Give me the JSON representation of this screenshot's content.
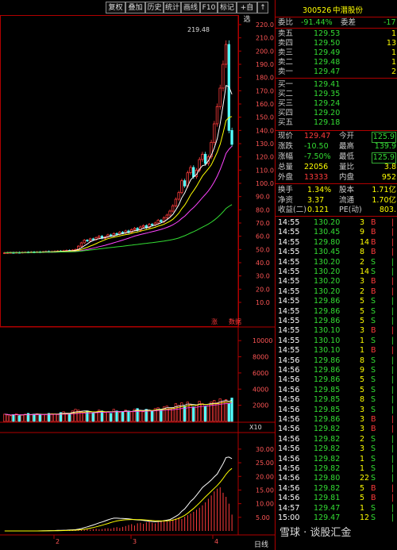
{
  "toolbar": {
    "items": [
      "复权",
      "叠加",
      "历史",
      "统计",
      "画线",
      "F10",
      "标记",
      "+自选",
      "↑"
    ]
  },
  "price_chart": {
    "y_ticks": [
      "220.0",
      "210.0",
      "200.0",
      "190.0",
      "180.0",
      "170.0",
      "160.0",
      "150.0",
      "140.0",
      "130.0",
      "120.0",
      "110.0",
      "100.0",
      "90.0",
      "80.0",
      "70.0",
      "60.0",
      "50.0",
      "40.0",
      "30.0",
      "20.0",
      "10.0"
    ],
    "peak_label": "219.48",
    "markers": [
      "涨",
      "数据"
    ],
    "closes": [
      47.5,
      47.6,
      47.7,
      47.6,
      47.8,
      47.7,
      47.9,
      48.0,
      47.9,
      48.1,
      48.0,
      48.2,
      48.1,
      48.3,
      48.5,
      48.2,
      48.4,
      48.6,
      48.8,
      48.7,
      49.0,
      49.3,
      49.1,
      49.5,
      50.0,
      52.5,
      55.0,
      57.0,
      56.5,
      58.0,
      57.5,
      59.0,
      60.0,
      58.5,
      59.5,
      61.0,
      60.5,
      62.0,
      61.5,
      63.0,
      62.5,
      64.0,
      63.0,
      65.0,
      66.0,
      64.5,
      67.0,
      68.0,
      66.5,
      69.0,
      68.5,
      70.0,
      72.0,
      71.0,
      74.0,
      76.0,
      79.0,
      83.0,
      88.0,
      93.0,
      102.0,
      98.0,
      108.0,
      112.0,
      105.0,
      110.0,
      118.0,
      122.0,
      115.0,
      120.0,
      131.0,
      145.0,
      158.0,
      172.0,
      190.0,
      205.0,
      140.0,
      129.47
    ],
    "ma5_label": "",
    "last_price": 129.47
  },
  "volume_chart": {
    "y_ticks": [
      "10000",
      "8000",
      "6000",
      "4000",
      "2000"
    ],
    "unit_label": "X10",
    "volumes": [
      900,
      800,
      700,
      850,
      950,
      700,
      800,
      900,
      1000,
      850,
      900,
      950,
      800,
      850,
      900,
      1000,
      950,
      900,
      850,
      1100,
      1200,
      1000,
      900,
      1300,
      1500,
      1400,
      1200,
      1100,
      1300,
      1200,
      1000,
      1100,
      1400,
      1300,
      1100,
      1200,
      1000,
      1500,
      1300,
      1100,
      1200,
      1400,
      1300,
      1200,
      1500,
      1600,
      1300,
      1200,
      1500,
      1400,
      1300,
      1600,
      1700,
      1500,
      1800,
      1900,
      1600,
      1700,
      2200,
      2000,
      2300,
      1900,
      2400,
      2100,
      1800,
      2000,
      2500,
      2200,
      1900,
      2100,
      2400,
      2600,
      2300,
      2800,
      2500,
      2700,
      2200,
      2900
    ]
  },
  "indicator_chart": {
    "y_ticks": [
      "30.00",
      "25.00",
      "20.00",
      "15.00",
      "10.00",
      "5.00"
    ],
    "macd_bars": [
      0.2,
      0.3,
      0.2,
      0.3,
      0.4,
      0.3,
      0.5,
      0.4,
      0.6,
      0.5,
      0.4,
      0.6,
      0.5,
      0.7,
      0.8,
      0.6,
      0.7,
      0.9,
      1.0,
      0.8,
      1.2,
      1.4,
      1.1,
      1.5,
      1.8,
      2.2,
      2.5,
      2.0,
      2.8,
      3.0,
      2.6,
      3.2,
      3.5,
      3.0,
      2.8,
      3.3,
      3.6,
      4.0,
      3.5,
      3.8,
      4.2,
      4.6,
      5.0,
      4.4,
      5.2,
      5.8,
      6.4,
      7.0,
      7.8,
      8.5,
      9.4,
      10.5,
      11.8,
      13.0,
      14.5,
      15.5,
      16.0,
      14.0,
      12.5,
      10.0,
      6.0
    ]
  },
  "bottom_axis": {
    "labels": [
      "2",
      "3",
      "4"
    ],
    "tab": "日线"
  },
  "quote": {
    "code": "300526",
    "name": "中潜股份",
    "weibi_label": "委比",
    "weibi_value": "-91.44%",
    "weicha_label": "委差",
    "weicha_value": "-17",
    "asks": [
      {
        "label": "卖五",
        "price": "129.53",
        "vol": "1"
      },
      {
        "label": "卖四",
        "price": "129.50",
        "vol": "13"
      },
      {
        "label": "卖三",
        "price": "129.49",
        "vol": "1"
      },
      {
        "label": "卖二",
        "price": "129.48",
        "vol": "1"
      },
      {
        "label": "卖一",
        "price": "129.47",
        "vol": "2"
      }
    ],
    "bids": [
      {
        "label": "买一",
        "price": "129.41",
        "vol": ""
      },
      {
        "label": "买二",
        "price": "129.35",
        "vol": ""
      },
      {
        "label": "买三",
        "price": "129.24",
        "vol": ""
      },
      {
        "label": "买四",
        "price": "129.20",
        "vol": ""
      },
      {
        "label": "买五",
        "price": "129.18",
        "vol": ""
      }
    ],
    "stats": [
      {
        "l1": "现价",
        "v1": "129.47",
        "l2": "今开",
        "v2": "125.9"
      },
      {
        "l1": "涨跌",
        "v1": "-10.50",
        "l2": "最高",
        "v2": "139.9"
      },
      {
        "l1": "涨幅",
        "v1": "-7.50%",
        "l2": "最低",
        "v2": "125.9"
      },
      {
        "l1": "总量",
        "v1": "22056",
        "l2": "量比",
        "v2": "3.8"
      },
      {
        "l1": "外盘",
        "v1": "13333",
        "l2": "内盘",
        "v2": "952"
      }
    ],
    "stats2": [
      {
        "l1": "换手",
        "v1": "1.34%",
        "l2": "股本",
        "v2": "1.71亿"
      },
      {
        "l1": "净资",
        "v1": "3.37",
        "l2": "流通",
        "v2": "1.70亿"
      },
      {
        "l1": "收益(二)",
        "v1": "0.121",
        "l2": "PE(动)",
        "v2": "803."
      }
    ]
  },
  "trades": [
    {
      "time": "14:55",
      "price": "130.20",
      "vol": "3",
      "dir": "B"
    },
    {
      "time": "14:55",
      "price": "130.45",
      "vol": "9",
      "dir": "B"
    },
    {
      "time": "14:55",
      "price": "129.80",
      "vol": "14",
      "dir": "B"
    },
    {
      "time": "14:55",
      "price": "130.45",
      "vol": "8",
      "dir": "B"
    },
    {
      "time": "14:55",
      "price": "130.20",
      "vol": "2",
      "dir": "S"
    },
    {
      "time": "14:55",
      "price": "130.20",
      "vol": "14",
      "dir": "S"
    },
    {
      "time": "14:55",
      "price": "130.20",
      "vol": "3",
      "dir": "B"
    },
    {
      "time": "14:55",
      "price": "130.20",
      "vol": "2",
      "dir": "B"
    },
    {
      "time": "14:55",
      "price": "129.86",
      "vol": "5",
      "dir": "S"
    },
    {
      "time": "14:55",
      "price": "129.86",
      "vol": "5",
      "dir": "S"
    },
    {
      "time": "14:55",
      "price": "129.86",
      "vol": "5",
      "dir": "S"
    },
    {
      "time": "14:55",
      "price": "130.10",
      "vol": "3",
      "dir": "B"
    },
    {
      "time": "14:55",
      "price": "130.10",
      "vol": "1",
      "dir": "S"
    },
    {
      "time": "14:55",
      "price": "130.10",
      "vol": "1",
      "dir": "B"
    },
    {
      "time": "14:56",
      "price": "129.86",
      "vol": "8",
      "dir": "S"
    },
    {
      "time": "14:56",
      "price": "129.86",
      "vol": "9",
      "dir": "S"
    },
    {
      "time": "14:56",
      "price": "129.86",
      "vol": "5",
      "dir": "S"
    },
    {
      "time": "14:56",
      "price": "129.85",
      "vol": "5",
      "dir": "S"
    },
    {
      "time": "14:56",
      "price": "129.85",
      "vol": "8",
      "dir": "S"
    },
    {
      "time": "14:56",
      "price": "129.85",
      "vol": "3",
      "dir": "S"
    },
    {
      "time": "14:56",
      "price": "129.86",
      "vol": "3",
      "dir": "B"
    },
    {
      "time": "14:56",
      "price": "129.82",
      "vol": "3",
      "dir": "B"
    },
    {
      "time": "14:56",
      "price": "129.82",
      "vol": "2",
      "dir": "S"
    },
    {
      "time": "14:56",
      "price": "129.82",
      "vol": "3",
      "dir": "S"
    },
    {
      "time": "14:56",
      "price": "129.82",
      "vol": "1",
      "dir": "S"
    },
    {
      "time": "14:56",
      "price": "129.82",
      "vol": "1",
      "dir": "S"
    },
    {
      "time": "14:56",
      "price": "129.80",
      "vol": "22",
      "dir": "S"
    },
    {
      "time": "14:56",
      "price": "129.82",
      "vol": "5",
      "dir": "B"
    },
    {
      "time": "14:56",
      "price": "129.81",
      "vol": "5",
      "dir": "B"
    },
    {
      "time": "14:57",
      "price": "129.47",
      "vol": "1",
      "dir": "S"
    },
    {
      "time": "15:00",
      "price": "129.47",
      "vol": "12",
      "dir": "S"
    }
  ],
  "watermark": "雪球 · 谈股汇金",
  "colors": {
    "up": "#ff3b3b",
    "down": "#55ffff",
    "grid": "#b00000",
    "ma1": "#ffffff",
    "ma2": "#ffff00",
    "ma3": "#ff44ff",
    "ma4": "#33dd33"
  }
}
